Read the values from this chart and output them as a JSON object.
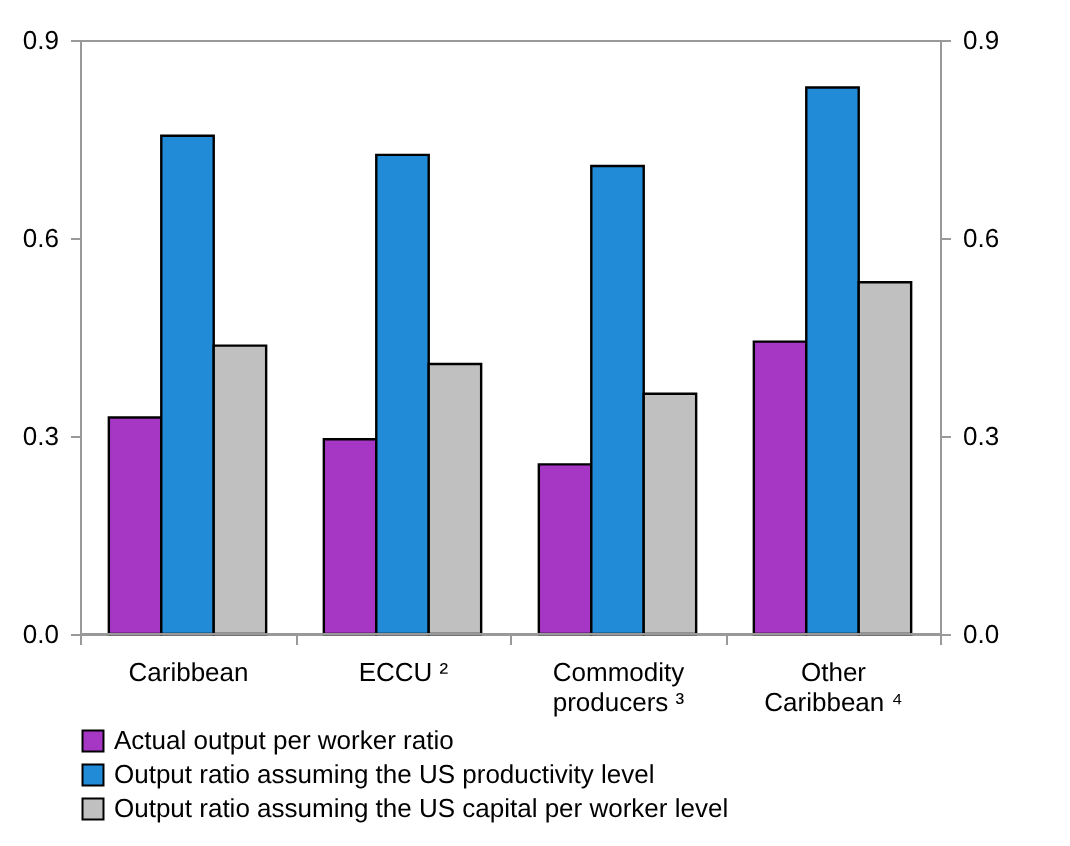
{
  "chart_data": {
    "type": "bar",
    "categories": [
      "Caribbean",
      "ECCU ²",
      "Commodity producers ³",
      "Other Caribbean ⁴"
    ],
    "series": [
      {
        "name": "Actual output per worker ratio",
        "color": "#a637c4",
        "values": [
          0.328,
          0.295,
          0.257,
          0.443
        ]
      },
      {
        "name": "Output ratio assuming the US productivity level",
        "color": "#218bd8",
        "values": [
          0.755,
          0.726,
          0.709,
          0.828
        ]
      },
      {
        "name": "Output ratio assuming the US capital per worker level",
        "color": "#c0c0c0",
        "values": [
          0.437,
          0.409,
          0.364,
          0.533
        ]
      }
    ],
    "ylim": [
      0,
      0.9
    ],
    "yticks": [
      {
        "value": 0,
        "label": "0.0"
      },
      0.3,
      0.6,
      0.9
    ],
    "y2lim": [
      0,
      0.9
    ],
    "y2ticks": [
      {
        "value": 0,
        "label": "0.0"
      },
      0.3,
      0.6,
      0.9
    ],
    "legend": "bottom",
    "grid": false
  }
}
